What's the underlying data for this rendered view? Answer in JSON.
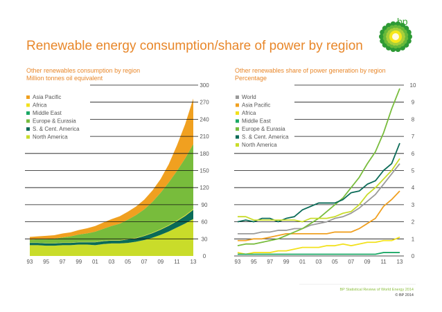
{
  "page": {
    "title": "Renewable energy consumption/share of power by region",
    "logo_text": "bp",
    "footer_source": "BP Statistical Review of World Energy 2014",
    "footer_copyright": "© BP 2014"
  },
  "colors": {
    "title": "#e8872a",
    "Asia Pacific": "#f0a020",
    "Africa": "#f2e11c",
    "Middle East": "#1aa865",
    "Europe & Eurasia": "#78bc3c",
    "S. & Cent. America": "#0b6b58",
    "North America": "#c9dc2a",
    "World": "#9a9a9a"
  },
  "chart_data": [
    {
      "type": "area",
      "stacked": true,
      "title": "Other renewables consumption by region",
      "ylabel": "Million tonnes oil equivalent",
      "x": [
        1993,
        1994,
        1995,
        1996,
        1997,
        1998,
        1999,
        2000,
        2001,
        2002,
        2003,
        2004,
        2005,
        2006,
        2007,
        2008,
        2009,
        2010,
        2011,
        2012,
        2013
      ],
      "xticks": [
        "93",
        "95",
        "97",
        "99",
        "01",
        "03",
        "05",
        "07",
        "09",
        "11",
        "13"
      ],
      "yticks": [
        "0",
        "30",
        "60",
        "90",
        "120",
        "150",
        "180",
        "210",
        "240",
        "270",
        "300"
      ],
      "ylim": [
        0,
        300
      ],
      "legend": [
        "Asia Pacific",
        "Africa",
        "Middle East",
        "Europe & Eurasia",
        "S. & Cent. America",
        "North America"
      ],
      "legend_position": "top-left",
      "series": [
        {
          "name": "North America",
          "values": [
            19,
            19,
            18,
            18,
            19,
            19,
            20,
            20,
            19,
            21,
            22,
            22,
            23,
            25,
            28,
            32,
            37,
            43,
            50,
            57,
            65
          ]
        },
        {
          "name": "S. & Cent. America",
          "values": [
            4,
            4,
            4,
            4,
            4,
            4,
            4,
            4,
            5,
            5,
            5,
            5,
            6,
            6,
            7,
            8,
            9,
            10,
            11,
            13,
            16
          ]
        },
        {
          "name": "Middle East",
          "values": [
            0.1,
            0.1,
            0.1,
            0.1,
            0.1,
            0.1,
            0.1,
            0.1,
            0.1,
            0.1,
            0.1,
            0.1,
            0.1,
            0.1,
            0.1,
            0.1,
            0.1,
            0.1,
            0.2,
            0.2,
            0.2
          ]
        },
        {
          "name": "Africa",
          "values": [
            0.3,
            0.3,
            0.3,
            0.4,
            0.4,
            0.4,
            0.5,
            0.5,
            0.5,
            0.6,
            0.6,
            0.6,
            0.7,
            0.7,
            0.8,
            0.8,
            0.9,
            1.0,
            1.0,
            1.1,
            1.2
          ]
        },
        {
          "name": "Europe & Eurasia",
          "values": [
            5,
            6,
            7,
            8,
            9,
            11,
            13,
            15,
            18,
            21,
            25,
            29,
            34,
            40,
            46,
            54,
            64,
            75,
            87,
            100,
            114
          ]
        },
        {
          "name": "Asia Pacific",
          "values": [
            5,
            5,
            6,
            6,
            7,
            7,
            8,
            9,
            10,
            11,
            12,
            13,
            14,
            15,
            17,
            20,
            24,
            32,
            45,
            60,
            80
          ]
        }
      ]
    },
    {
      "type": "line",
      "title": "Other renewables share of power generation by region",
      "ylabel": "Percentage",
      "x": [
        1993,
        1994,
        1995,
        1996,
        1997,
        1998,
        1999,
        2000,
        2001,
        2002,
        2003,
        2004,
        2005,
        2006,
        2007,
        2008,
        2009,
        2010,
        2011,
        2012,
        2013
      ],
      "xticks": [
        "93",
        "95",
        "97",
        "99",
        "01",
        "03",
        "05",
        "07",
        "09",
        "11",
        "13"
      ],
      "yticks": [
        "0",
        "1",
        "2",
        "3",
        "4",
        "5",
        "6",
        "7",
        "8",
        "9",
        "10"
      ],
      "ylim": [
        0,
        10
      ],
      "legend": [
        "World",
        "Asia Pacific",
        "Africa",
        "Middle East",
        "Europe & Eurasia",
        "S. & Cent. America",
        "North America"
      ],
      "legend_position": "top-left",
      "series": [
        {
          "name": "World",
          "values": [
            1.3,
            1.3,
            1.3,
            1.4,
            1.4,
            1.5,
            1.5,
            1.6,
            1.6,
            1.8,
            1.9,
            2.0,
            2.2,
            2.3,
            2.5,
            2.8,
            3.2,
            3.6,
            4.2,
            4.8,
            5.4
          ]
        },
        {
          "name": "Asia Pacific",
          "values": [
            0.9,
            0.9,
            1.0,
            1.0,
            1.1,
            1.2,
            1.3,
            1.3,
            1.3,
            1.3,
            1.3,
            1.3,
            1.4,
            1.4,
            1.4,
            1.6,
            1.9,
            2.2,
            2.9,
            3.3,
            3.8
          ]
        },
        {
          "name": "Africa",
          "values": [
            0.2,
            0.1,
            0.2,
            0.2,
            0.2,
            0.3,
            0.3,
            0.4,
            0.5,
            0.5,
            0.5,
            0.6,
            0.6,
            0.7,
            0.6,
            0.7,
            0.8,
            0.8,
            0.9,
            0.9,
            1.1
          ]
        },
        {
          "name": "Middle East",
          "values": [
            0.1,
            0.1,
            0.1,
            0.1,
            0.1,
            0.1,
            0.1,
            0.1,
            0.1,
            0.1,
            0.1,
            0.1,
            0.1,
            0.1,
            0.1,
            0.1,
            0.1,
            0.1,
            0.2,
            0.2,
            0.2
          ]
        },
        {
          "name": "Europe & Eurasia",
          "values": [
            0.6,
            0.7,
            0.7,
            0.8,
            0.9,
            1.0,
            1.2,
            1.4,
            1.6,
            1.9,
            2.2,
            2.6,
            3.0,
            3.4,
            4.0,
            4.6,
            5.4,
            6.1,
            7.2,
            8.6,
            9.8
          ]
        },
        {
          "name": "S. & Cent. America",
          "values": [
            2.0,
            2.1,
            2.0,
            2.2,
            2.2,
            2.0,
            2.2,
            2.3,
            2.7,
            2.9,
            3.1,
            3.1,
            3.1,
            3.3,
            3.7,
            3.8,
            4.2,
            4.4,
            5.0,
            5.4,
            6.6
          ]
        },
        {
          "name": "North America",
          "values": [
            2.3,
            2.3,
            2.1,
            2.1,
            2.1,
            2.1,
            2.1,
            2.1,
            2.0,
            2.2,
            2.2,
            2.2,
            2.3,
            2.5,
            2.6,
            3.0,
            3.6,
            4.0,
            4.5,
            5.0,
            5.7
          ]
        }
      ]
    }
  ]
}
